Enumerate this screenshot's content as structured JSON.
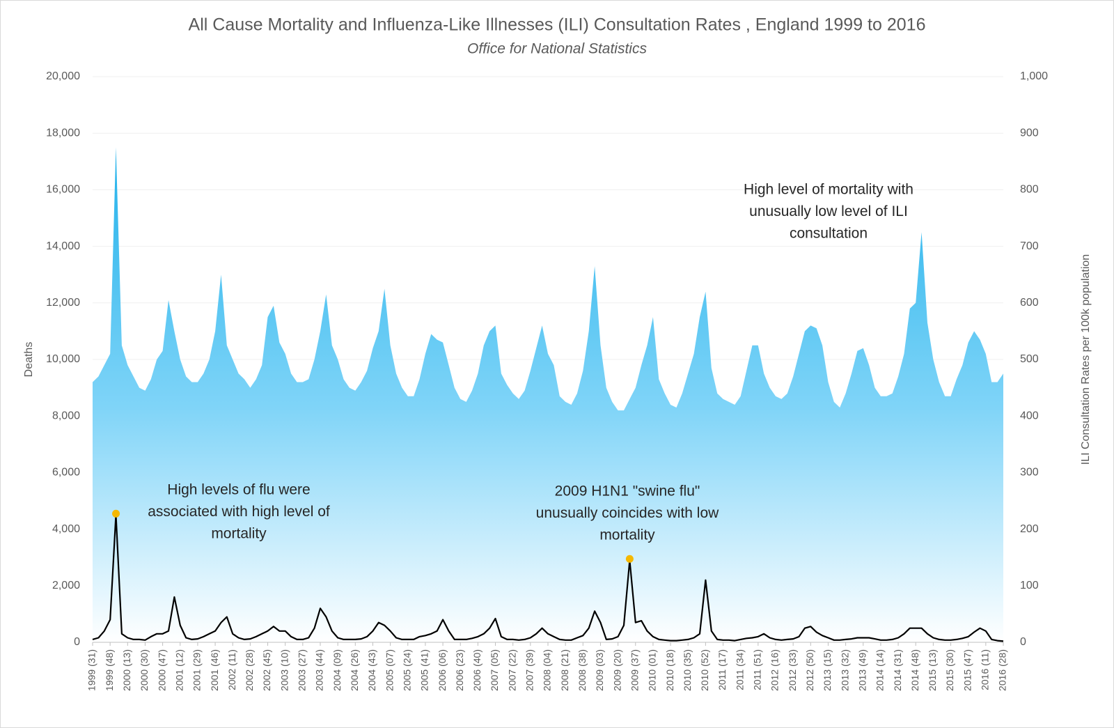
{
  "chart_data": {
    "type": "area-line",
    "title": "All Cause Mortality and Influenza-Like Illnesses (ILI) Consultation Rates , England 1999 to 2016",
    "subtitle": "Office for National Statistics",
    "ylabel": "Deaths",
    "y2label": "ILI Consultation Rates per 100k population",
    "categories": [
      "1999 (31)",
      null,
      null,
      "1999 (48)",
      null,
      null,
      "2000 (13)",
      null,
      null,
      "2000 (30)",
      null,
      null,
      "2000 (47)",
      null,
      null,
      "2001 (12)",
      null,
      null,
      "2001 (29)",
      null,
      null,
      "2001 (46)",
      null,
      null,
      "2002 (11)",
      null,
      null,
      "2002 (28)",
      null,
      null,
      "2002 (45)",
      null,
      null,
      "2003 (10)",
      null,
      null,
      "2003 (27)",
      null,
      null,
      "2003 (44)",
      null,
      null,
      "2004 (09)",
      null,
      null,
      "2004 (26)",
      null,
      null,
      "2004 (43)",
      null,
      null,
      "2005 (07)",
      null,
      null,
      "2005 (24)",
      null,
      null,
      "2005 (41)",
      null,
      null,
      "2006 (06)",
      null,
      null,
      "2006 (23)",
      null,
      null,
      "2006 (40)",
      null,
      null,
      "2007 (05)",
      null,
      null,
      "2007 (22)",
      null,
      null,
      "2007 (39)",
      null,
      null,
      "2008 (04)",
      null,
      null,
      "2008 (21)",
      null,
      null,
      "2008 (38)",
      null,
      null,
      "2009 (03)",
      null,
      null,
      "2009 (20)",
      null,
      null,
      "2009 (37)",
      null,
      null,
      "2010 (01)",
      null,
      null,
      "2010 (18)",
      null,
      null,
      "2010 (35)",
      null,
      null,
      "2010 (52)",
      null,
      null,
      "2011 (17)",
      null,
      null,
      "2011 (34)",
      null,
      null,
      "2011 (51)",
      null,
      null,
      "2012 (16)",
      null,
      null,
      "2012 (33)",
      null,
      null,
      "2012 (50)",
      null,
      null,
      "2013 (15)",
      null,
      null,
      "2013 (32)",
      null,
      null,
      "2013 (49)",
      null,
      null,
      "2014 (14)",
      null,
      null,
      "2014 (31)",
      null,
      null,
      "2014 (48)",
      null,
      null,
      "2015 (13)",
      null,
      null,
      "2015 (30)",
      null,
      null,
      "2015 (47)",
      null,
      null,
      "2016 (11)",
      null,
      null,
      "2016 (28)"
    ],
    "series": [
      {
        "name": "Deaths",
        "color": "#1aaeea",
        "values": [
          9200,
          9400,
          9800,
          10200,
          17500,
          10500,
          9800,
          9400,
          9000,
          8900,
          9300,
          10000,
          10300,
          12100,
          11000,
          10000,
          9400,
          9200,
          9200,
          9500,
          10000,
          11000,
          13000,
          10500,
          10000,
          9500,
          9300,
          9000,
          9300,
          9800,
          11500,
          11900,
          10600,
          10200,
          9500,
          9200,
          9200,
          9300,
          10000,
          11000,
          12300,
          10500,
          10000,
          9300,
          9000,
          8900,
          9200,
          9600,
          10400,
          11000,
          12500,
          10500,
          9500,
          9000,
          8700,
          8700,
          9300,
          10200,
          10900,
          10700,
          10600,
          9800,
          9000,
          8600,
          8500,
          8900,
          9500,
          10500,
          11000,
          11200,
          9500,
          9100,
          8800,
          8600,
          8900,
          9600,
          10400,
          11200,
          10200,
          9800,
          8700,
          8500,
          8400,
          8800,
          9600,
          11000,
          13300,
          10500,
          9000,
          8500,
          8200,
          8200,
          8600,
          9000,
          9800,
          10500,
          11500,
          9300,
          8800,
          8400,
          8300,
          8800,
          9500,
          10200,
          11500,
          12400,
          9700,
          8800,
          8600,
          8500,
          8400,
          8700,
          9600,
          10500,
          10500,
          9500,
          9000,
          8700,
          8600,
          8800,
          9400,
          10200,
          11000,
          11200,
          11100,
          10500,
          9200,
          8500,
          8300,
          8800,
          9500,
          10300,
          10400,
          9800,
          9000,
          8700,
          8700,
          8800,
          9400,
          10200,
          11800,
          12000,
          14500,
          11300,
          10000,
          9200,
          8700,
          8700,
          9300,
          9800,
          10600,
          11000,
          10700,
          10200,
          9200,
          9200,
          9500
        ]
      },
      {
        "name": "ILI",
        "color": "#000000",
        "axis": "y2",
        "values": [
          5,
          8,
          20,
          40,
          225,
          15,
          8,
          5,
          5,
          4,
          10,
          15,
          15,
          20,
          80,
          30,
          8,
          5,
          6,
          10,
          15,
          20,
          35,
          45,
          15,
          8,
          5,
          6,
          10,
          15,
          20,
          28,
          20,
          20,
          10,
          5,
          5,
          8,
          25,
          60,
          45,
          20,
          8,
          5,
          5,
          5,
          6,
          10,
          20,
          35,
          30,
          20,
          8,
          5,
          5,
          5,
          10,
          12,
          15,
          20,
          40,
          20,
          5,
          5,
          5,
          7,
          10,
          15,
          25,
          42,
          10,
          5,
          5,
          4,
          5,
          8,
          15,
          25,
          15,
          10,
          5,
          4,
          4,
          8,
          12,
          25,
          55,
          35,
          5,
          6,
          10,
          30,
          145,
          35,
          38,
          20,
          10,
          5,
          4,
          3,
          3,
          4,
          5,
          8,
          15,
          110,
          20,
          5,
          4,
          4,
          3,
          5,
          7,
          8,
          10,
          15,
          8,
          5,
          4,
          5,
          6,
          10,
          25,
          28,
          18,
          12,
          8,
          4,
          4,
          5,
          6,
          8,
          8,
          8,
          6,
          4,
          4,
          5,
          8,
          15,
          25,
          25,
          25,
          15,
          8,
          5,
          4,
          4,
          5,
          7,
          10,
          18,
          25,
          20,
          5,
          3,
          2
        ]
      }
    ],
    "annotations": [
      {
        "lines": [
          "High level of mortality with",
          "unusually low level of ILI",
          "consultation"
        ]
      },
      {
        "lines": [
          "High levels of flu were",
          "associated with high level of",
          "mortality"
        ]
      },
      {
        "lines": [
          "2009 H1N1 \"swine flu\"",
          "unusually coincides with low",
          "mortality"
        ]
      }
    ],
    "highlight_color": "#f5b800",
    "ylim": [
      0,
      20000
    ],
    "yticks": [
      0,
      {
        "value": 2000,
        "label": "2,000"
      },
      {
        "value": 4000,
        "label": "4,000"
      },
      {
        "value": 6000,
        "label": "6,000"
      },
      {
        "value": 8000,
        "label": "8,000"
      },
      {
        "value": 10000,
        "label": "10,000"
      },
      {
        "value": 12000,
        "label": "12,000"
      },
      {
        "value": 14000,
        "label": "14,000"
      },
      {
        "value": 16000,
        "label": "16,000"
      },
      {
        "value": 18000,
        "label": "18,000"
      },
      {
        "value": 20000,
        "label": "20,000"
      }
    ],
    "y2lim": [
      0,
      1000
    ],
    "y2ticks": [
      0,
      100,
      200,
      300,
      400,
      500,
      600,
      700,
      800,
      900,
      {
        "value": 1000,
        "label": "1,000"
      }
    ],
    "grid": true
  }
}
